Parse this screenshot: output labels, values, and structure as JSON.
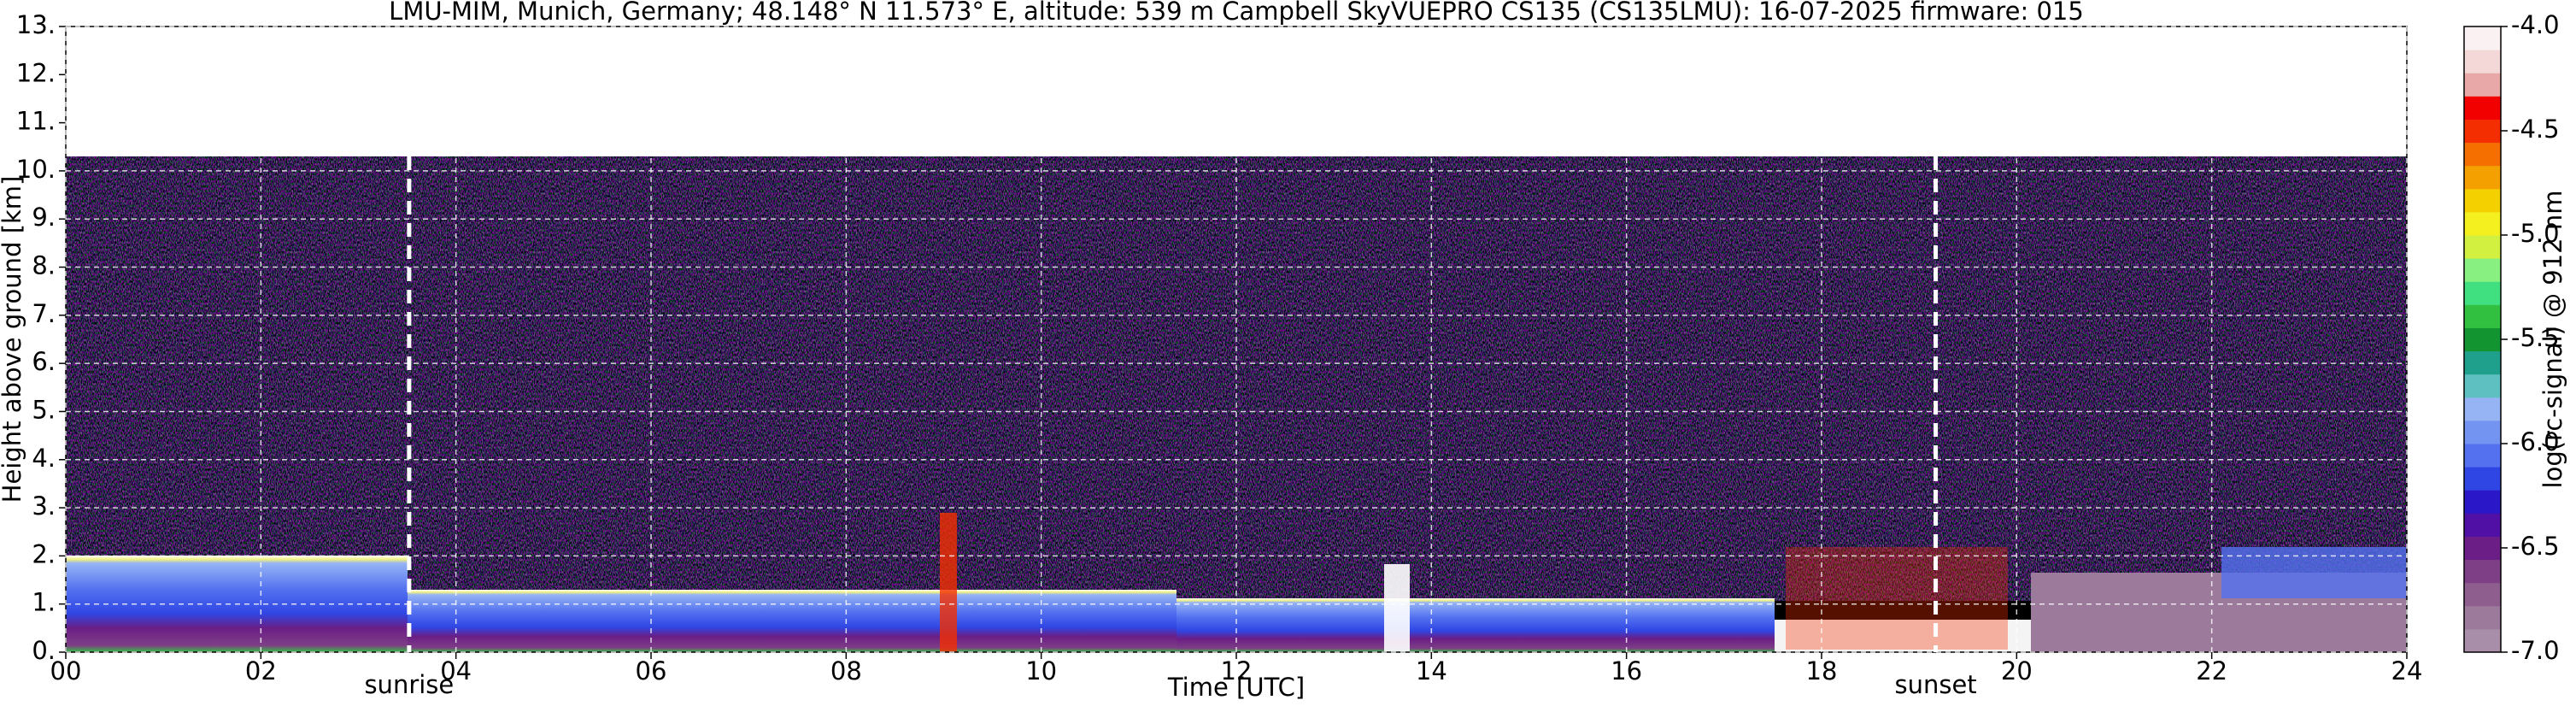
{
  "chart_data": {
    "type": "heatmap",
    "title": "LMU-MIM, Munich, Germany; 48.148° N 11.573° E, altitude: 539 m    Campbell SkyVUEPRO CS135 (CS135LMU): 16-07-2025    firmware: 015",
    "xlabel": "Time [UTC]",
    "ylabel": "Height above ground [km]",
    "xlim": [
      0,
      24
    ],
    "xticks": [
      {
        "value": 0,
        "label": "00"
      },
      {
        "value": 2,
        "label": "02"
      },
      {
        "value": 4,
        "label": "04"
      },
      {
        "value": 6,
        "label": "06"
      },
      {
        "value": 8,
        "label": "08"
      },
      10,
      12,
      14,
      16,
      18,
      20,
      22,
      24
    ],
    "ylim": [
      0,
      13
    ],
    "yticks": [
      {
        "value": 0,
        "label": "0."
      },
      {
        "value": 1,
        "label": "1."
      },
      {
        "value": 2,
        "label": "2."
      },
      {
        "value": 3,
        "label": "3."
      },
      {
        "value": 4,
        "label": "4."
      },
      {
        "value": 5,
        "label": "5."
      },
      {
        "value": 6,
        "label": "6."
      },
      {
        "value": 7,
        "label": "7."
      },
      {
        "value": 8,
        "label": "8."
      },
      {
        "value": 9,
        "label": "9."
      },
      {
        "value": 10,
        "label": "10."
      },
      {
        "value": 11,
        "label": "11."
      },
      {
        "value": 12,
        "label": "12."
      },
      {
        "value": 13,
        "label": "13."
      }
    ],
    "grid": true,
    "annotations": [
      {
        "text": "sunrise",
        "x": 3.52
      },
      {
        "text": "sunset",
        "x": 19.17
      }
    ],
    "colorbar": {
      "label": "log(rc-signal) @ 912 nm",
      "lim": [
        -7,
        -4
      ],
      "ticks": [
        {
          "value": -7,
          "label": "-7.0"
        },
        {
          "value": -6.5,
          "label": "-6.5"
        },
        {
          "value": -6,
          "label": "-6.0"
        },
        {
          "value": -5.5,
          "label": "-5.5"
        },
        {
          "value": -5,
          "label": "-5.0"
        },
        {
          "value": -4.5,
          "label": "-4.5"
        },
        {
          "value": -4,
          "label": "-4.0"
        }
      ],
      "colors": [
        "#a98ea9",
        "#9c7a9c",
        "#8e5e8e",
        "#7e3f86",
        "#6a1e86",
        "#5010a6",
        "#2a18c8",
        "#3046e4",
        "#5472f0",
        "#7494f2",
        "#96b4f4",
        "#5ec0c0",
        "#1fa08c",
        "#129430",
        "#32c040",
        "#40e080",
        "#88f080",
        "#d2f040",
        "#f4f020",
        "#f4d000",
        "#f4a000",
        "#f46e00",
        "#f42e00",
        "#f20000",
        "#e8a8a8",
        "#f4d8d8",
        "#faf2f2"
      ]
    }
  }
}
